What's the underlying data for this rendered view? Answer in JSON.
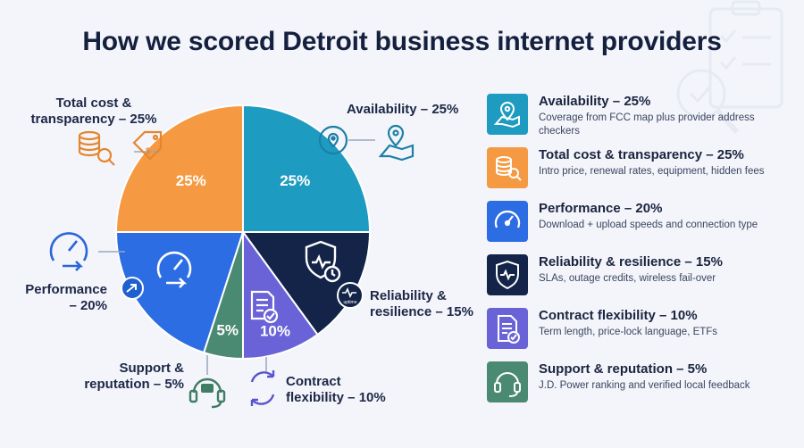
{
  "title": "How we scored Detroit business internet providers",
  "chart_data": {
    "type": "pie",
    "categories": [
      "Availability",
      "Reliability & resilience",
      "Contract flexibility",
      "Support & reputation",
      "Performance",
      "Total cost & transparency"
    ],
    "values": [
      25,
      15,
      10,
      5,
      20,
      25
    ],
    "slice_labels": [
      "25%",
      "",
      "10%",
      "5%",
      "",
      "25%"
    ],
    "colors": [
      "#1d9bc0",
      "#132448",
      "#6a63d8",
      "#4b8a72",
      "#2d6de3",
      "#f59a42"
    ]
  },
  "callouts": {
    "availability": "Availability – 25%",
    "total_cost_line1": "Total cost &",
    "total_cost_line2": "transparency – 25%",
    "performance_line1": "Performance",
    "performance_line2": "– 20%",
    "reliability_line1": "Reliability &",
    "reliability_line2": "resilience – 15%",
    "contract_line1": "Contract",
    "contract_line2": "flexibility – 10%",
    "support_line1": "Support &",
    "support_line2": "reputation – 5%"
  },
  "uptime_badge": "uptime",
  "legend": [
    {
      "title": "Availability – 25%",
      "desc": "Coverage from FCC map plus provider address checkers",
      "color": "#1d9bc0",
      "icon": "map-pin-icon"
    },
    {
      "title": "Total cost & transparency – 25%",
      "desc": "Intro price, renewal rates, equipment, hidden fees",
      "color": "#f59a42",
      "icon": "coins-magnifier-icon"
    },
    {
      "title": "Performance – 20%",
      "desc": "Download + upload speeds and connection type",
      "color": "#2d6de3",
      "icon": "speedometer-icon"
    },
    {
      "title": "Reliability & resilience – 15%",
      "desc": "SLAs, outage credits, wireless fail-over",
      "color": "#132448",
      "icon": "shield-pulse-icon"
    },
    {
      "title": "Contract flexibility – 10%",
      "desc": "Term length, price-lock language, ETFs",
      "color": "#6a63d8",
      "icon": "document-check-icon"
    },
    {
      "title": "Support & reputation – 5%",
      "desc": "J.D. Power ranking and verified local feedback",
      "color": "#4b8a72",
      "icon": "headset-icon"
    }
  ]
}
